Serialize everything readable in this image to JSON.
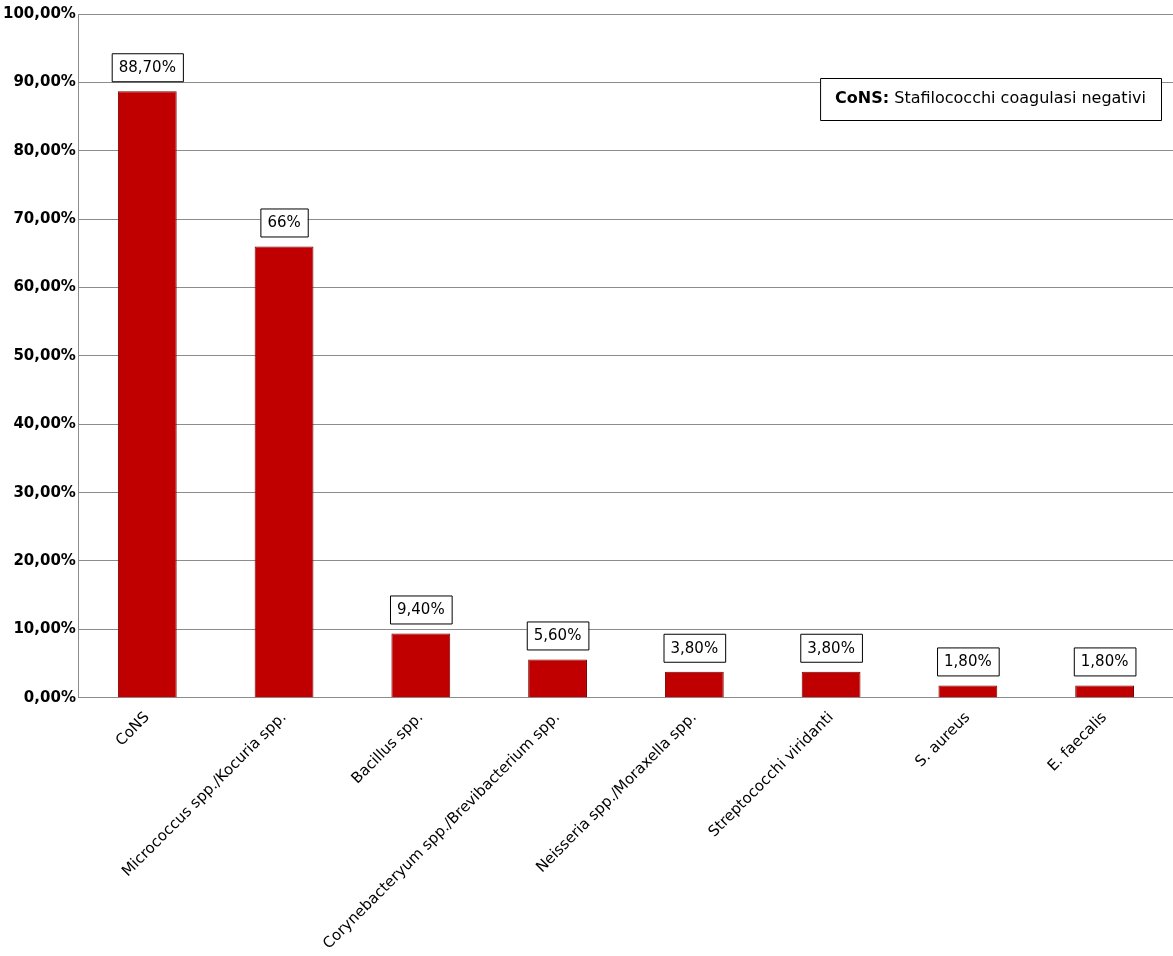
{
  "chart_data": {
    "type": "bar",
    "categories": [
      "CoNS",
      "Micrococcus spp./Kocuria spp.",
      "Bacillus spp.",
      "Corynebacteryum spp./Brevibacterium spp.",
      "Neisseria spp./Moraxella spp.",
      "Streptococchi viridanti",
      "S. aureus",
      "E. faecalis"
    ],
    "values": [
      88.7,
      66,
      9.4,
      5.6,
      3.8,
      3.8,
      1.8,
      1.8
    ],
    "value_labels": [
      "88,70%",
      "66%",
      "9,40%",
      "5,60%",
      "3,80%",
      "3,80%",
      "1,80%",
      "1,80%"
    ],
    "color": "#c00000",
    "ylim": [
      0,
      100
    ],
    "yticks": [
      {
        "value": 0,
        "label": "0,00%"
      },
      {
        "value": 10,
        "label": "10,00%"
      },
      {
        "value": 20,
        "label": "20,00%"
      },
      {
        "value": 30,
        "label": "30,00%"
      },
      {
        "value": 40,
        "label": "40,00%"
      },
      {
        "value": 50,
        "label": "50,00%"
      },
      {
        "value": 60,
        "label": "60,00%"
      },
      {
        "value": 70,
        "label": "70,00%"
      },
      {
        "value": 80,
        "label": "80,00%"
      },
      {
        "value": 90,
        "label": "90,00%"
      },
      {
        "value": 100,
        "label": "100,00%"
      }
    ],
    "grid": "y",
    "legend": false,
    "annotations": [
      "CoNS: Stafilococchi coagulasi negativi"
    ]
  }
}
